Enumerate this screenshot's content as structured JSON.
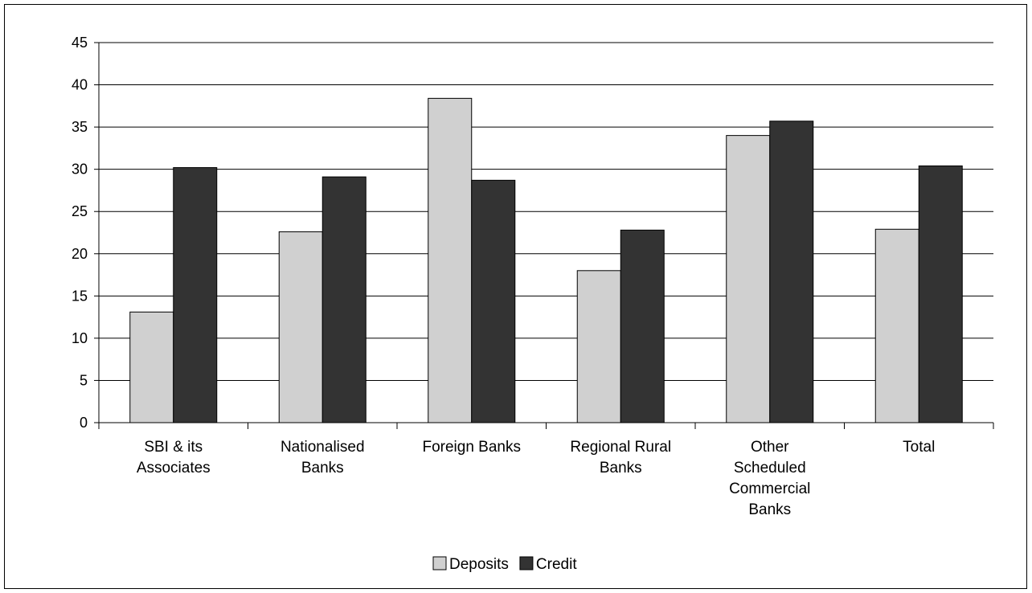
{
  "chart_data": {
    "type": "bar",
    "title": "",
    "xlabel": "",
    "ylabel": "",
    "ylim": [
      0,
      45
    ],
    "ytick_step": 5,
    "grid": true,
    "legend_position": "bottom",
    "categories": [
      [
        "SBI & its",
        "Associates"
      ],
      [
        "Nationalised",
        "Banks"
      ],
      [
        "Foreign Banks"
      ],
      [
        "Regional Rural",
        "Banks"
      ],
      [
        "Other",
        "Scheduled",
        "Commercial",
        "Banks"
      ],
      [
        "Total"
      ]
    ],
    "series": [
      {
        "name": "Deposits",
        "color": "#d0d0d0",
        "values": [
          13.1,
          22.6,
          38.4,
          18.0,
          34.0,
          22.9
        ]
      },
      {
        "name": "Credit",
        "color": "#333333",
        "values": [
          30.2,
          29.1,
          28.7,
          22.8,
          35.7,
          30.4
        ]
      }
    ]
  }
}
